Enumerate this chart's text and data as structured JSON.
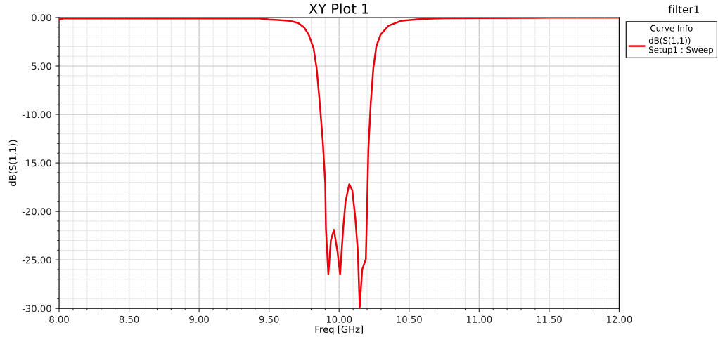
{
  "chart_data": {
    "type": "line",
    "title": "XY Plot 1",
    "xlabel": "Freq [GHz]",
    "ylabel": "dB(S(1,1))",
    "legend_title": "Curve Info",
    "annotations": [
      "filter1"
    ],
    "series": [
      {
        "name": "dB(S(1,1))\nSetup1 : Sweep",
        "color": "#e8000b",
        "x": [
          8.0,
          8.03,
          8.5,
          9.0,
          9.43,
          9.5,
          9.563,
          9.65,
          9.708,
          9.752,
          9.783,
          9.818,
          9.84,
          9.862,
          9.884,
          9.901,
          9.906,
          9.923,
          9.941,
          9.963,
          9.989,
          10.007,
          10.029,
          10.046,
          10.072,
          10.094,
          10.116,
          10.134,
          10.147,
          10.165,
          10.191,
          10.2,
          10.209,
          10.226,
          10.244,
          10.266,
          10.296,
          10.353,
          10.441,
          10.586,
          10.75,
          11.0,
          11.5,
          12.0
        ],
        "values": [
          -0.2,
          -0.1,
          -0.1,
          -0.1,
          -0.1,
          -0.2,
          -0.25,
          -0.35,
          -0.57,
          -1.06,
          -1.77,
          -3.18,
          -5.3,
          -8.85,
          -12.9,
          -17.1,
          -21.8,
          -26.5,
          -23.0,
          -21.9,
          -24.2,
          -26.5,
          -21.8,
          -19.0,
          -17.2,
          -17.8,
          -20.7,
          -24.2,
          -29.9,
          -26.0,
          -24.9,
          -19.5,
          -13.6,
          -8.85,
          -5.3,
          -2.97,
          -1.77,
          -0.85,
          -0.35,
          -0.14,
          -0.08,
          -0.05,
          -0.03,
          -0.02
        ]
      }
    ],
    "xlim": [
      8.0,
      12.0
    ],
    "ylim": [
      -30.0,
      0.0
    ],
    "xticks": [
      {
        "value": 8.0,
        "label": "8.00"
      },
      {
        "value": 8.5,
        "label": "8.50"
      },
      {
        "value": 9.0,
        "label": "9.00"
      },
      {
        "value": 9.5,
        "label": "9.50"
      },
      {
        "value": 10.0,
        "label": "10.00"
      },
      {
        "value": 10.5,
        "label": "10.50"
      },
      {
        "value": 11.0,
        "label": "11.00"
      },
      {
        "value": 11.5,
        "label": "11.50"
      },
      {
        "value": 12.0,
        "label": "12.00"
      }
    ],
    "yticks": [
      {
        "value": -30.0,
        "label": "-30.00"
      },
      {
        "value": -25.0,
        "label": "-25.00"
      },
      {
        "value": -20.0,
        "label": "-20.00"
      },
      {
        "value": -15.0,
        "label": "-15.00"
      },
      {
        "value": -10.0,
        "label": "-10.00"
      },
      {
        "value": -5.0,
        "label": "-5.00"
      },
      {
        "value": 0.0,
        "label": "0.00"
      }
    ],
    "grid": true,
    "legend": "top right",
    "marker": "none",
    "line_style": "solid"
  }
}
